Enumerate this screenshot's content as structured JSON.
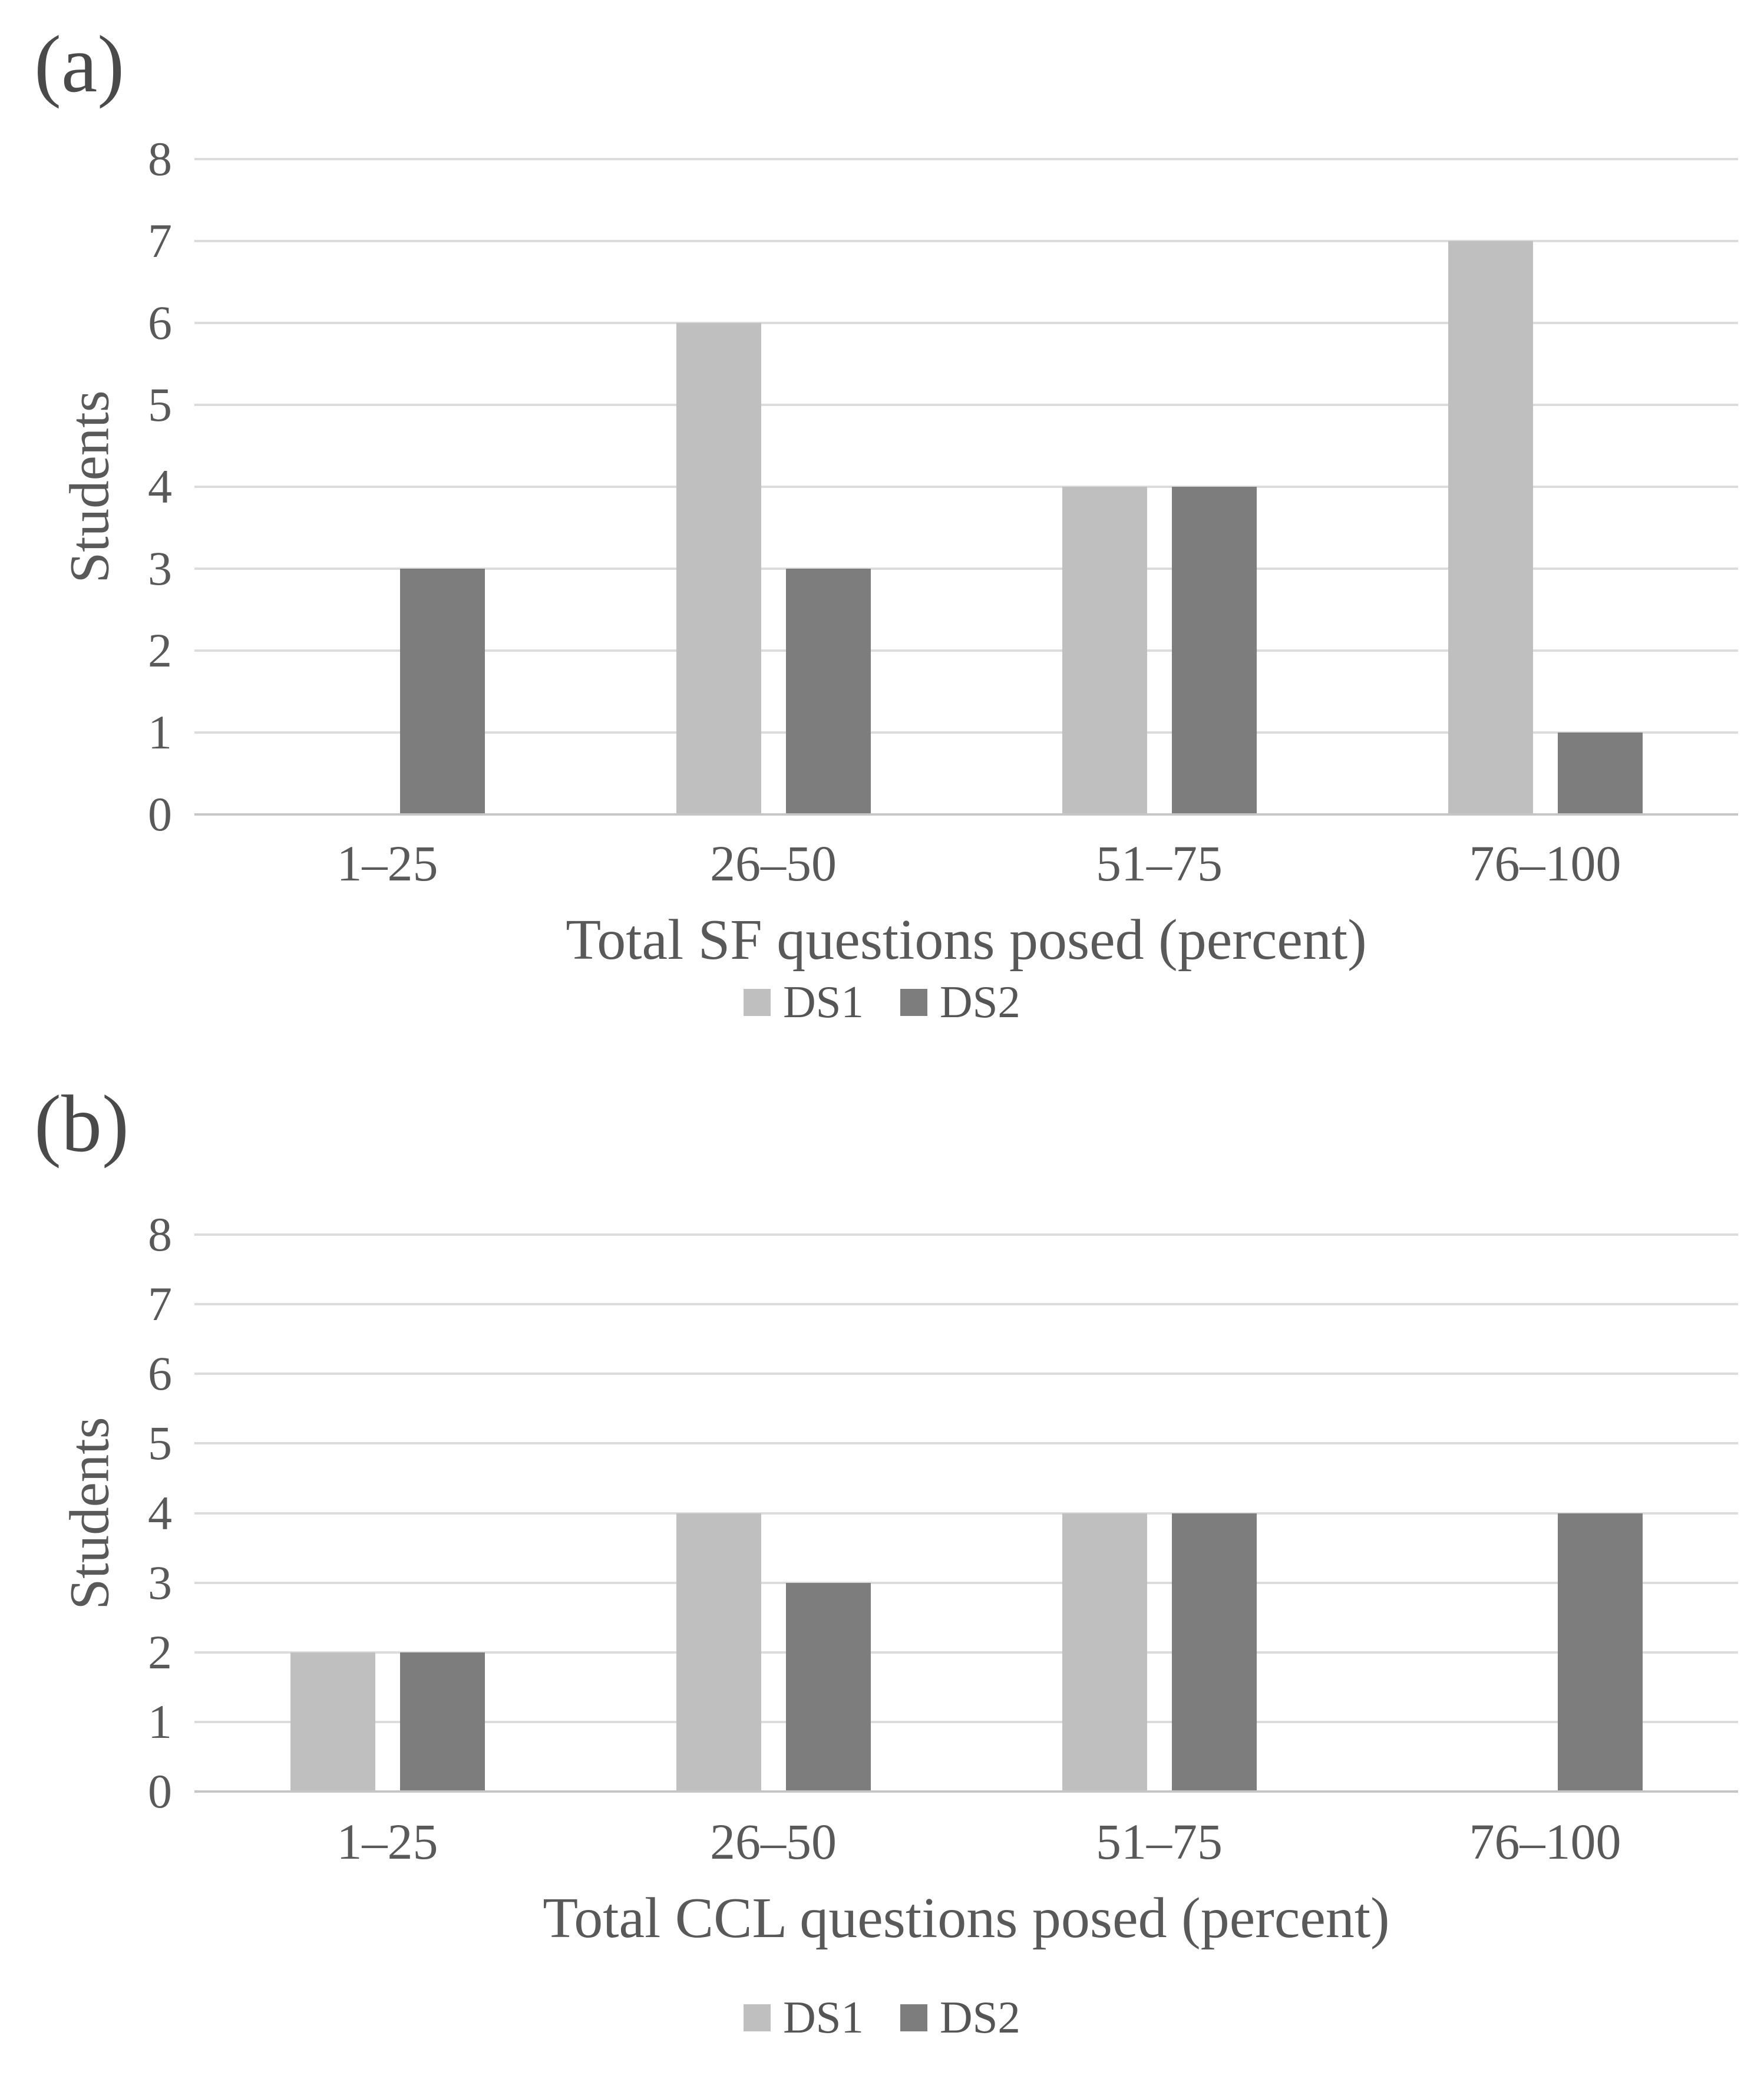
{
  "figure": {
    "background": "#ffffff",
    "panel_count": 2
  },
  "colors": {
    "series_ds1": "#bfbfbf",
    "series_ds2": "#7d7d7d",
    "gridline": "#dcdcdc",
    "axis_line": "#c6c6c6",
    "text": "#595959",
    "panel_label_text": "#4a4a4a",
    "background": "#ffffff"
  },
  "chart_data": [
    {
      "type": "bar",
      "panel_label": "(a)",
      "title": "",
      "xlabel": "Total SF questions posed (percent)",
      "ylabel": "Students",
      "categories": [
        "1–25",
        "26–50",
        "51–75",
        "76–100"
      ],
      "series": [
        {
          "name": "DS1",
          "color": "#bfbfbf",
          "values": [
            0,
            6,
            4,
            7
          ]
        },
        {
          "name": "DS2",
          "color": "#7d7d7d",
          "values": [
            3,
            3,
            4,
            1
          ]
        }
      ],
      "ylim": [
        0,
        8
      ],
      "yticks": [
        0,
        1,
        2,
        3,
        4,
        5,
        6,
        7,
        8
      ],
      "grid": "horizontal",
      "legend_position": "bottom"
    },
    {
      "type": "bar",
      "panel_label": "(b)",
      "title": "",
      "xlabel": "Total CCL questions posed (percent)",
      "ylabel": "Students",
      "categories": [
        "1–25",
        "26–50",
        "51–75",
        "76–100"
      ],
      "series": [
        {
          "name": "DS1",
          "color": "#bfbfbf",
          "values": [
            2,
            4,
            4,
            0
          ]
        },
        {
          "name": "DS2",
          "color": "#7d7d7d",
          "values": [
            2,
            3,
            4,
            4
          ]
        }
      ],
      "ylim": [
        0,
        8
      ],
      "yticks": [
        0,
        1,
        2,
        3,
        4,
        5,
        6,
        7,
        8
      ],
      "grid": "horizontal",
      "legend_position": "bottom"
    }
  ]
}
